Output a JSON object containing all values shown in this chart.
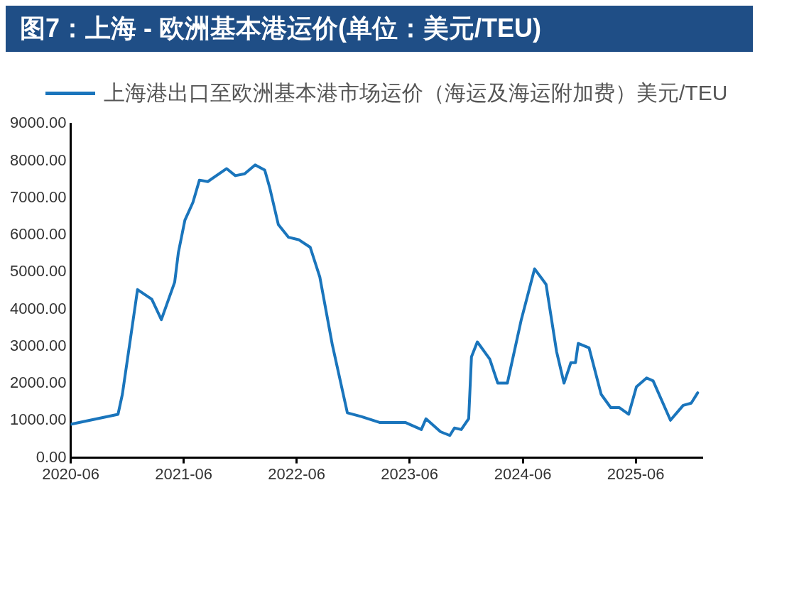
{
  "chart_data": {
    "type": "line",
    "title": "图7：上海 - 欧洲基本港运价(单位：美元/TEU)",
    "legend": "top",
    "grid": false,
    "marker": "none",
    "line_style": "solid",
    "xlim": [
      "2020-06-01",
      "2025-12-31"
    ],
    "xticks": [
      "2020-06",
      "2021-06",
      "2022-06",
      "2023-06",
      "2024-06",
      "2025-06"
    ],
    "ylim": [
      0,
      9000
    ],
    "yticks": [
      {
        "value": 0,
        "label": "0.00"
      },
      {
        "value": 1000,
        "label": "1000.00"
      },
      {
        "value": 2000,
        "label": "2000.00"
      },
      {
        "value": 3000,
        "label": "3000.00"
      },
      {
        "value": 4000,
        "label": "4000.00"
      },
      {
        "value": 5000,
        "label": "5000.00"
      },
      {
        "value": 6000,
        "label": "6000.00"
      },
      {
        "value": 7000,
        "label": "7000.00"
      },
      {
        "value": 8000,
        "label": "8000.00"
      },
      {
        "value": 9000,
        "label": "9000.00"
      }
    ],
    "x": [
      "2020-06-01",
      "2020-11-01",
      "2020-11-15",
      "2020-12-12",
      "2021-01-03",
      "2021-02-18",
      "2021-03-21",
      "2021-05-03",
      "2021-05-15",
      "2021-06-05",
      "2021-07-01",
      "2021-07-22",
      "2021-08-18",
      "2021-10-18",
      "2021-11-15",
      "2021-12-15",
      "2022-01-18",
      "2022-02-18",
      "2022-03-06",
      "2022-04-03",
      "2022-05-06",
      "2022-06-09",
      "2022-07-15",
      "2022-08-15",
      "2022-09-24",
      "2022-11-12",
      "2022-12-27",
      "2023-02-24",
      "2023-05-18",
      "2023-07-09",
      "2023-07-24",
      "2023-09-09",
      "2023-10-09",
      "2023-10-24",
      "2023-11-15",
      "2023-12-09",
      "2023-12-18",
      "2024-01-06",
      "2024-02-15",
      "2024-03-12",
      "2024-04-12",
      "2024-05-27",
      "2024-07-09",
      "2024-08-15",
      "2024-09-18",
      "2024-10-12",
      "2024-11-03",
      "2024-11-18",
      "2024-11-27",
      "2025-01-01",
      "2025-02-09",
      "2025-03-12",
      "2025-04-09",
      "2025-05-09",
      "2025-06-03",
      "2025-07-06",
      "2025-07-27",
      "2025-09-21",
      "2025-11-01",
      "2025-11-27",
      "2025-12-18"
    ],
    "series": [
      {
        "name": "上海港出口至欧洲基本港市场运价（海运及海运附加费）美元/TEU",
        "color": "#1a75bc",
        "values": [
          900,
          1170,
          1710,
          3260,
          4530,
          4270,
          3720,
          4730,
          5530,
          6400,
          6880,
          7480,
          7440,
          7790,
          7600,
          7650,
          7890,
          7750,
          7280,
          6280,
          5940,
          5870,
          5670,
          4870,
          3060,
          1210,
          1110,
          950,
          950,
          760,
          1050,
          700,
          600,
          800,
          760,
          1050,
          2720,
          3120,
          2660,
          2010,
          2010,
          3720,
          5090,
          4670,
          2860,
          2010,
          2560,
          2560,
          3080,
          2960,
          1710,
          1350,
          1350,
          1170,
          1910,
          2150,
          2070,
          1010,
          1410,
          1470,
          1750
        ]
      }
    ]
  }
}
